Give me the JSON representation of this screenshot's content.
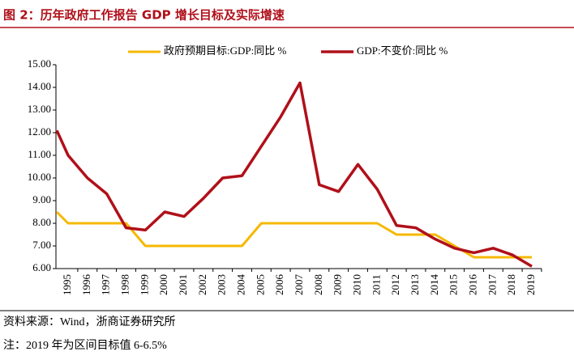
{
  "chart_data": {
    "type": "line",
    "title": "图 2：历年政府工作报告 GDP 增长目标及实际增速",
    "categories": [
      null,
      "1995",
      "1996",
      "1997",
      "1998",
      "1999",
      "2000",
      "2001",
      "2002",
      "2003",
      "2004",
      "2005",
      "2006",
      "2007",
      "2008",
      "2009",
      "2010",
      "2011",
      "2012",
      "2013",
      "2014",
      "2015",
      "2016",
      "2017",
      "2018",
      "2019"
    ],
    "series": [
      {
        "name": "政府预期目标:GDP:同比 %",
        "color": "#f5b800",
        "values": [
          8.5,
          8,
          8,
          8,
          8,
          7,
          7,
          7,
          7,
          7,
          7,
          8,
          8,
          8,
          8,
          8,
          8,
          8,
          7.5,
          7.5,
          7.5,
          7,
          6.5,
          6.5,
          6.5,
          6.5
        ]
      },
      {
        "name": "GDP:不变价:同比 %",
        "color": "#b0101a",
        "values": [
          12.1,
          11.0,
          10.0,
          9.3,
          7.8,
          7.7,
          8.5,
          8.3,
          9.1,
          10.0,
          10.1,
          11.4,
          12.7,
          14.2,
          9.7,
          9.4,
          10.6,
          9.5,
          7.9,
          7.8,
          7.3,
          6.9,
          6.7,
          6.9,
          6.6,
          6.1
        ]
      }
    ],
    "ylim": [
      6,
      15
    ],
    "yticks": [
      {
        "value": 6,
        "label": "6.00"
      },
      {
        "value": 7,
        "label": "7.00"
      },
      {
        "value": 8,
        "label": "8.00"
      },
      {
        "value": 9,
        "label": "9.00"
      },
      {
        "value": 10,
        "label": "10.00"
      },
      {
        "value": 11,
        "label": "11.00"
      },
      {
        "value": 12,
        "label": "12.00"
      },
      {
        "value": 13,
        "label": "13.00"
      },
      {
        "value": 14,
        "label": "14.00"
      },
      {
        "value": 15,
        "label": "15.00"
      }
    ],
    "source": "资料来源：Wind，浙商证券研究所",
    "note": "注：2019 年为区间目标值 6-6.5%"
  }
}
